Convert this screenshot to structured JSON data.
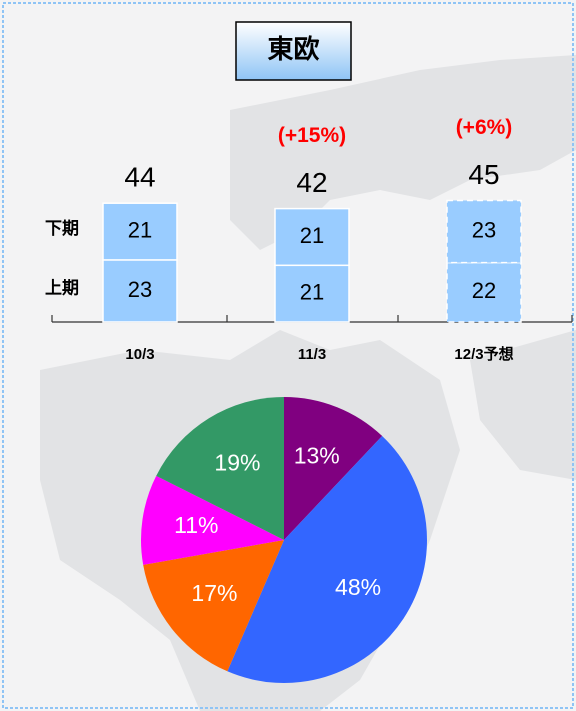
{
  "chart_data": [
    {
      "type": "stacked-bar",
      "title": "東欧",
      "categories": [
        "10/3",
        "11/3",
        "12/3予想"
      ],
      "series": [
        {
          "name": "上期",
          "color": "#99ccff",
          "values": [
            23,
            21,
            22
          ]
        },
        {
          "name": "下期",
          "color": "#99ccff",
          "values": [
            21,
            21,
            23
          ]
        }
      ],
      "totals": [
        44,
        42,
        45
      ],
      "annotations": [
        null,
        "(+15%)",
        "(+6%)"
      ],
      "forecast": [
        false,
        false,
        true
      ]
    },
    {
      "type": "pie",
      "values": [
        13,
        48,
        17,
        11,
        19
      ],
      "value_labels": [
        "13%",
        "48%",
        "17%",
        "11%",
        "19%"
      ],
      "colors": [
        "#800080",
        "#3366ff",
        "#ff6600",
        "#ff00ff",
        "#339966"
      ]
    }
  ]
}
